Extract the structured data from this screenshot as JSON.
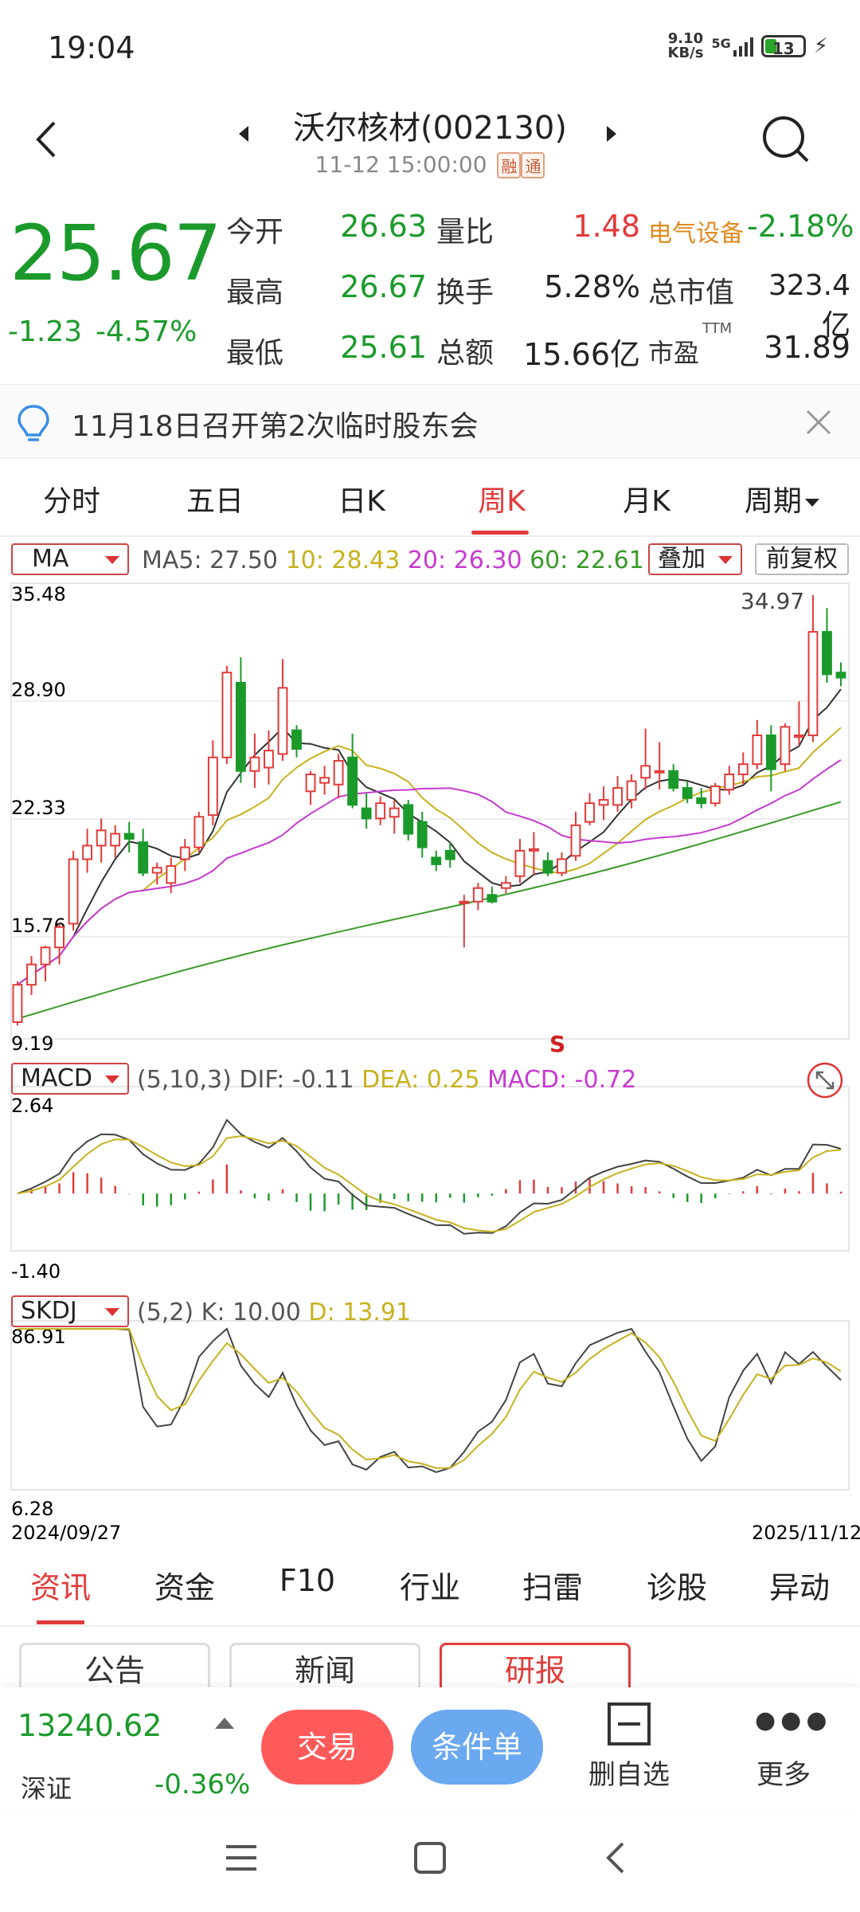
{
  "status_bar": {
    "time": "19:04",
    "net_speed_top": "9.10",
    "net_speed_bottom": "KB/s",
    "network": "5G",
    "battery": "13"
  },
  "header": {
    "title": "沃尔核材(002130)",
    "datetime": "11-12 15:00:00",
    "tag_rong": "融",
    "tag_tong": "通"
  },
  "quote": {
    "price": "25.67",
    "change": "-1.23",
    "change_pct": "-4.57%",
    "open_label": "今开",
    "open": "26.63",
    "vol_ratio_label": "量比",
    "vol_ratio": "1.48",
    "sector": "电气设备",
    "sector_chg": "-2.18%",
    "high_label": "最高",
    "high": "26.67",
    "turnover_label": "换手",
    "turnover": "5.28%",
    "mktcap_label": "总市值",
    "mktcap": "323.4亿",
    "low_label": "最低",
    "low": "25.61",
    "amount_label": "总额",
    "amount": "15.66亿",
    "pe_label": "市盈",
    "pe_sup": "TTM",
    "pe": "31.89"
  },
  "notice": {
    "text": "11月18日召开第2次临时股东会"
  },
  "tabs": [
    "分时",
    "五日",
    "日K",
    "周K",
    "月K",
    "周期"
  ],
  "chart_controls": {
    "ma_select": "MA",
    "ma5": "MA5: 27.50",
    "ma10": "10: 28.43",
    "ma20": "20: 26.30",
    "ma60": "60: 22.61",
    "overlay": "叠加",
    "adjust": "前复权",
    "macd_select": "MACD",
    "macd_params": "(5,10,3)",
    "dif": "DIF: -0.11",
    "dea": "DEA: 0.25",
    "macd": "MACD: -0.72",
    "skdj_select": "SKDJ",
    "skdj_params": "(5,2)",
    "k": "K: 10.00",
    "d": "D: 13.91",
    "signal": "S",
    "high_mark": "34.97"
  },
  "chart_data": {
    "type": "candlestick",
    "price_axis": [
      "35.48",
      "28.90",
      "22.33",
      "15.76",
      "9.19"
    ],
    "macd_axis": [
      "2.64",
      "-1.40"
    ],
    "skdj_axis": [
      "86.91",
      "6.28"
    ],
    "date_start": "2024/09/27",
    "date_end": "2025/11/12",
    "ylim": [
      9.19,
      35.48
    ],
    "candles": [
      [
        9.8,
        12.2,
        9.6,
        12.0
      ],
      [
        12.0,
        13.7,
        11.4,
        13.2
      ],
      [
        13.2,
        14.3,
        12.2,
        14.2
      ],
      [
        14.2,
        15.6,
        13.2,
        15.4
      ],
      [
        15.6,
        19.9,
        15.2,
        19.4
      ],
      [
        19.4,
        21.2,
        18.6,
        20.2
      ],
      [
        20.2,
        21.8,
        19.2,
        21.1
      ],
      [
        20.2,
        21.4,
        19.5,
        20.9
      ],
      [
        20.9,
        21.6,
        19.8,
        20.6
      ],
      [
        20.4,
        21.2,
        18.4,
        18.6
      ],
      [
        18.6,
        19.2,
        17.9,
        18.9
      ],
      [
        18.0,
        19.5,
        17.4,
        19.0
      ],
      [
        19.4,
        20.6,
        18.7,
        20.1
      ],
      [
        20.1,
        22.2,
        19.8,
        21.9
      ],
      [
        22.0,
        26.4,
        21.4,
        25.4
      ],
      [
        25.4,
        30.8,
        25.0,
        30.4
      ],
      [
        29.8,
        31.3,
        23.9,
        24.6
      ],
      [
        24.6,
        26.8,
        23.6,
        25.4
      ],
      [
        24.8,
        27.0,
        23.8,
        25.8
      ],
      [
        25.6,
        31.2,
        25.2,
        29.5
      ],
      [
        27.0,
        27.3,
        25.4,
        25.9
      ],
      [
        23.4,
        24.6,
        22.6,
        24.4
      ],
      [
        23.9,
        24.9,
        23.2,
        24.2
      ],
      [
        23.8,
        25.6,
        23.0,
        25.2
      ],
      [
        25.4,
        26.8,
        22.4,
        22.6
      ],
      [
        22.4,
        23.3,
        21.2,
        21.8
      ],
      [
        21.8,
        23.1,
        21.4,
        22.7
      ],
      [
        21.9,
        22.9,
        20.9,
        22.4
      ],
      [
        22.6,
        22.9,
        20.5,
        20.9
      ],
      [
        21.6,
        22.2,
        19.5,
        20.1
      ],
      [
        19.5,
        19.9,
        18.7,
        19.1
      ],
      [
        19.9,
        20.4,
        18.9,
        19.4
      ],
      [
        16.9,
        17.3,
        14.2,
        16.9
      ],
      [
        16.9,
        18.0,
        16.4,
        17.7
      ],
      [
        17.3,
        17.8,
        16.8,
        16.9
      ],
      [
        17.7,
        18.4,
        17.4,
        18.0
      ],
      [
        18.4,
        20.6,
        18.0,
        19.9
      ],
      [
        19.9,
        21.0,
        18.5,
        20.0
      ],
      [
        19.3,
        19.8,
        18.4,
        18.6
      ],
      [
        18.6,
        19.8,
        18.4,
        19.4
      ],
      [
        19.6,
        22.2,
        19.3,
        21.4
      ],
      [
        21.6,
        23.3,
        21.4,
        22.7
      ],
      [
        22.6,
        23.7,
        21.7,
        22.9
      ],
      [
        22.6,
        24.3,
        22.2,
        23.6
      ],
      [
        22.9,
        24.4,
        22.4,
        24.0
      ],
      [
        24.2,
        27.1,
        23.5,
        24.9
      ],
      [
        24.6,
        26.3,
        23.5,
        24.6
      ],
      [
        24.6,
        25.0,
        23.4,
        23.6
      ],
      [
        23.6,
        24.0,
        22.7,
        23.0
      ],
      [
        23.0,
        23.6,
        22.4,
        22.7
      ],
      [
        22.7,
        23.9,
        22.5,
        23.7
      ],
      [
        23.5,
        24.9,
        23.2,
        24.4
      ],
      [
        24.4,
        25.7,
        23.8,
        25.0
      ],
      [
        25.0,
        27.6,
        24.7,
        26.7
      ],
      [
        26.7,
        27.3,
        23.4,
        24.7
      ],
      [
        25.0,
        27.4,
        24.6,
        27.2
      ],
      [
        26.6,
        28.7,
        26.1,
        26.7
      ],
      [
        26.7,
        34.97,
        26.3,
        32.8
      ],
      [
        32.8,
        34.2,
        29.8,
        30.3
      ],
      [
        30.4,
        31.0,
        29.6,
        30.1
      ]
    ],
    "ma_series": [
      "MA5",
      "MA10",
      "MA20",
      "MA60"
    ],
    "macd_series": [
      "DIF",
      "DEA",
      "MACD"
    ],
    "skdj_series": [
      "K",
      "D"
    ]
  },
  "bottom_tabs": [
    "资讯",
    "资金",
    "F10",
    "行业",
    "扫雷",
    "诊股",
    "异动"
  ],
  "sub_tabs": [
    "公告",
    "新闻",
    "研报"
  ],
  "footer": {
    "index_value": "13240.62",
    "index_name": "深证",
    "index_change": "-0.36%",
    "trade": "交易",
    "condition_order": "条件单",
    "remove_watch": "删自选",
    "more": "更多"
  },
  "colors": {
    "up": "#e23b3b",
    "down": "#1b9a2b",
    "ma5": "#333333",
    "ma10": "#c7b21e",
    "ma20": "#c63ad0",
    "ma60": "#3a9a2a"
  }
}
